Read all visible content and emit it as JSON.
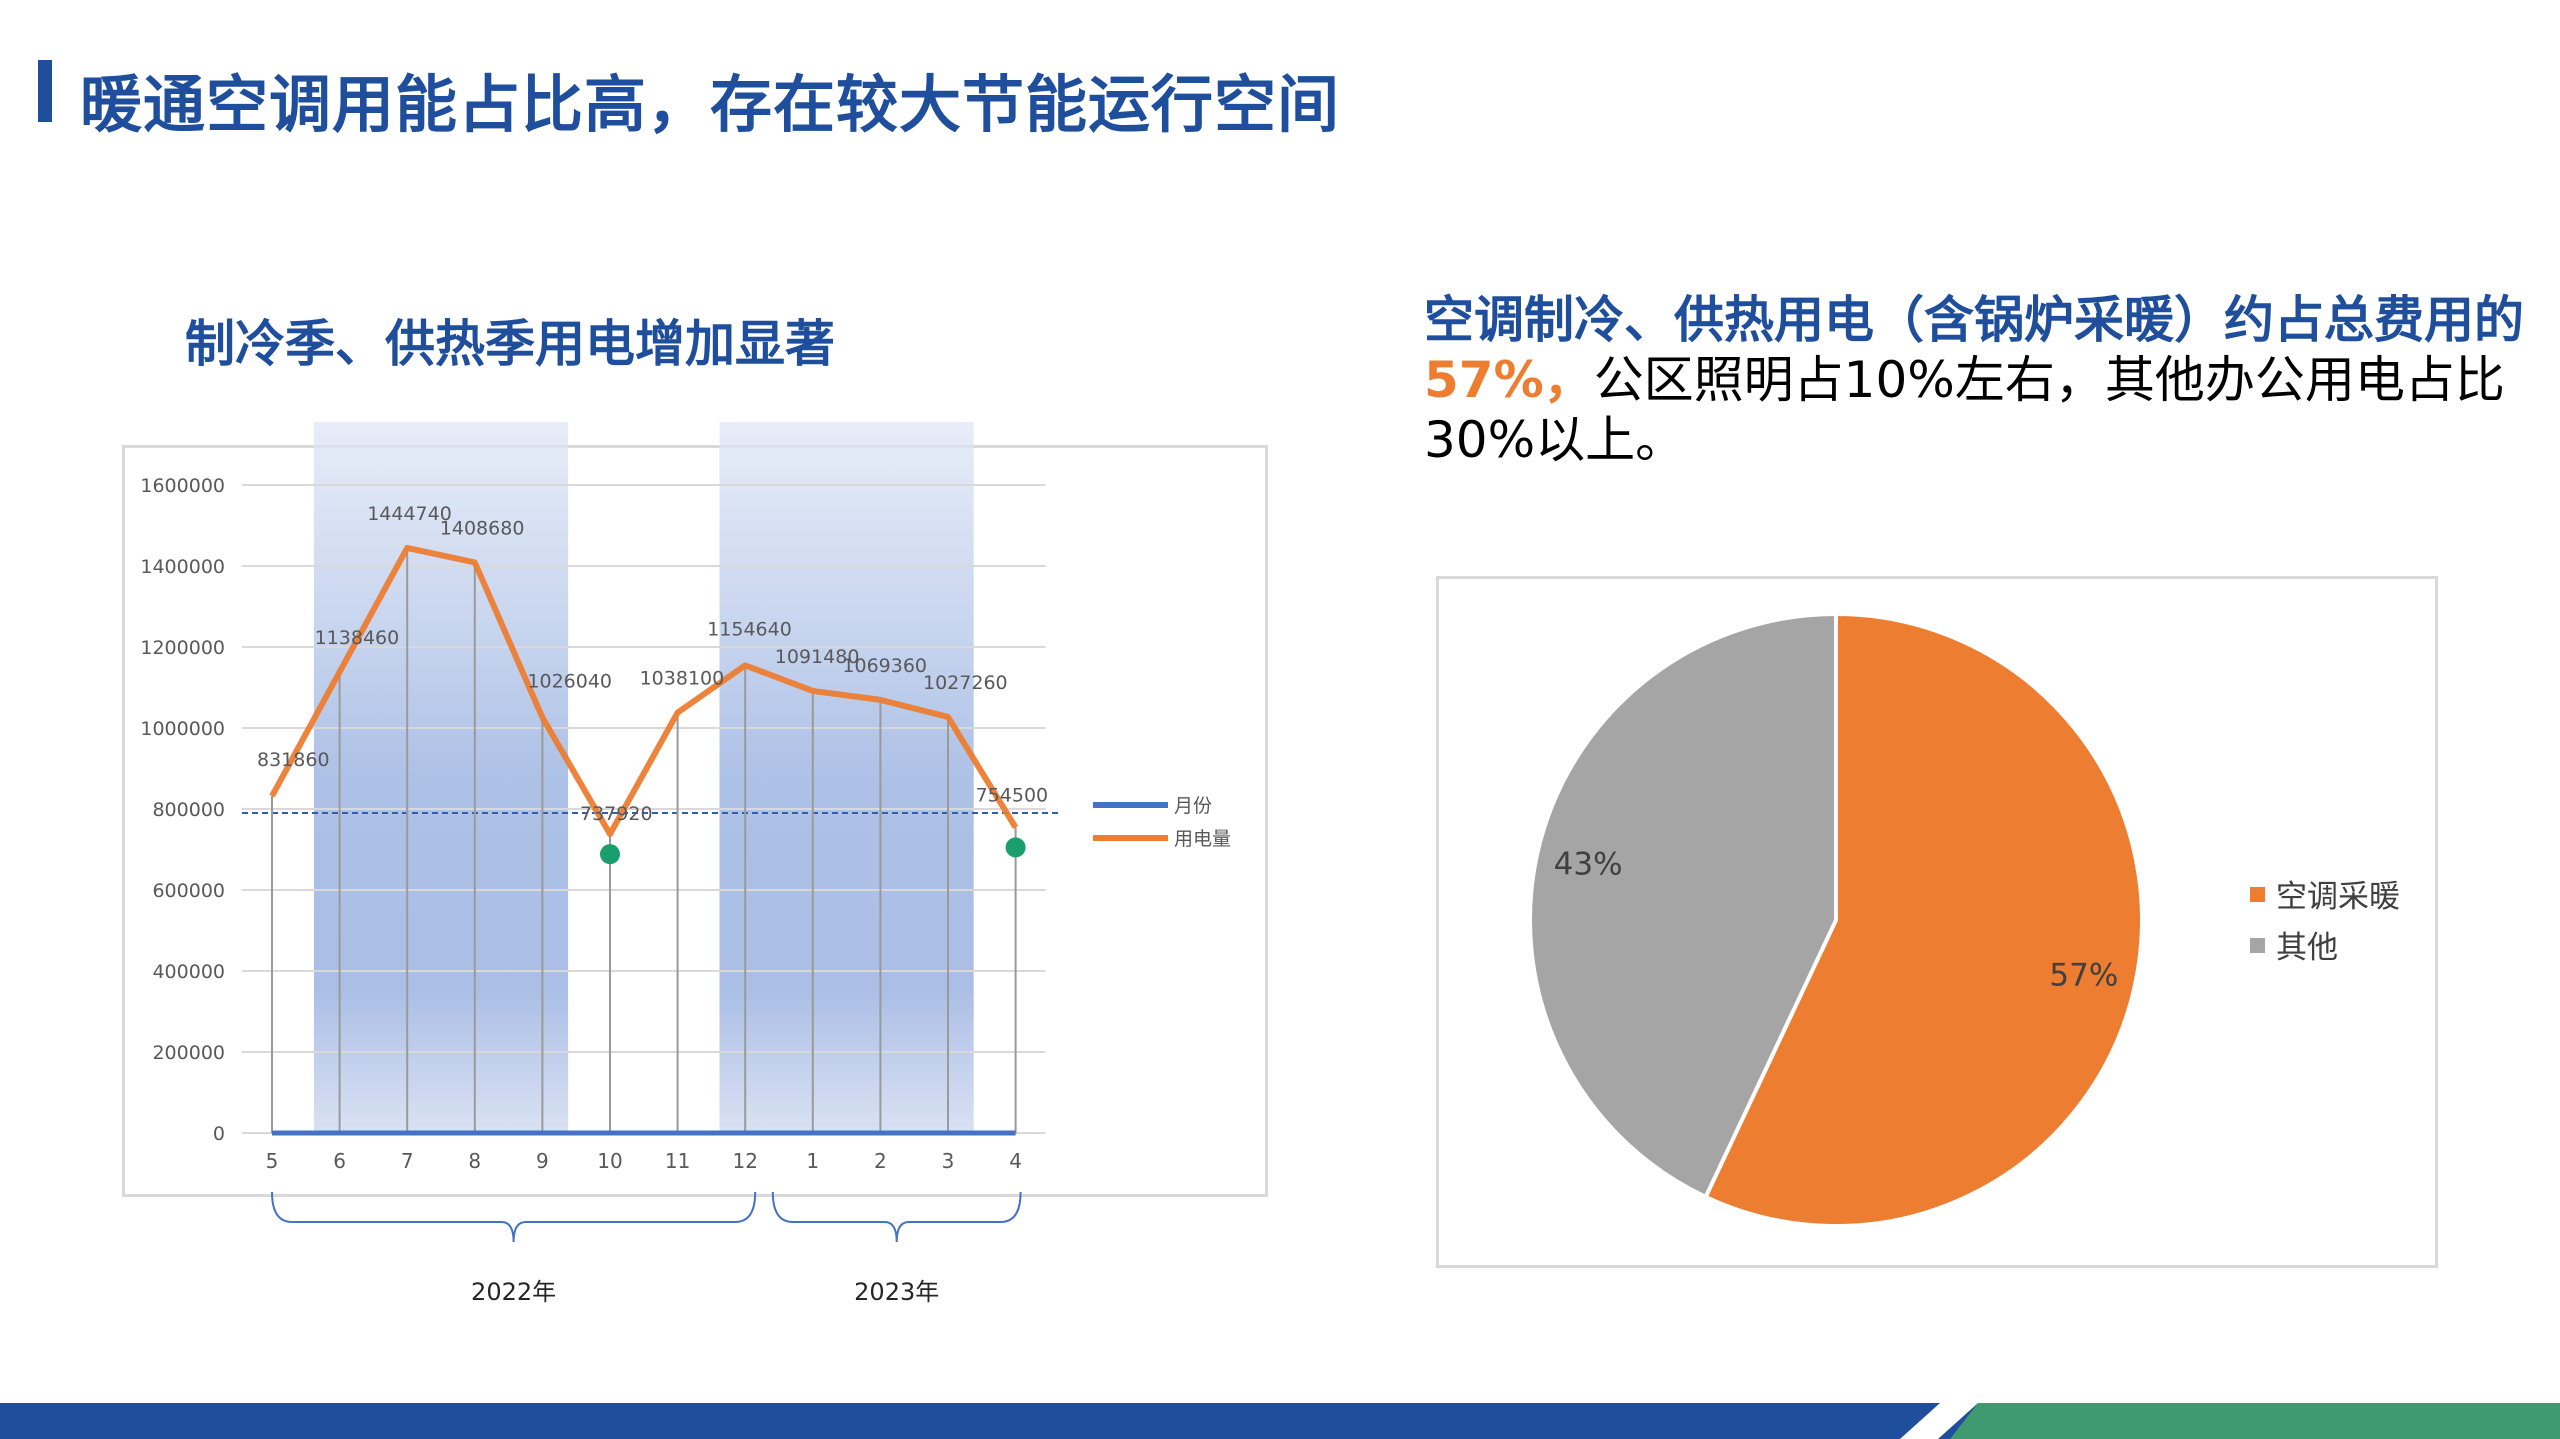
{
  "slide": {
    "title": "暖通空调用能占比高，存在较大节能运行空间"
  },
  "left_panel": {
    "heading": "制冷季、供热季用电增加显著",
    "year_labels": [
      "2022年",
      "2023年"
    ]
  },
  "right_panel": {
    "text_bold": "空调制冷、供热用电（含锅炉采暖）约占总费用的",
    "text_pct": "57%，",
    "text_rest": "公区照明占10%左右，其他办公用电占比30%以上。"
  },
  "colors": {
    "brand_blue": "#1f4e9c",
    "orange": "#ed7d31",
    "gray": "#a5a5a5",
    "green_dot": "#1a9e6e",
    "footer_green": "#3f9a72"
  },
  "chart_data": [
    {
      "type": "line",
      "x": [
        "5",
        "6",
        "7",
        "8",
        "9",
        "10",
        "11",
        "12",
        "1",
        "2",
        "3",
        "4"
      ],
      "series": [
        {
          "name": "月份",
          "values": [
            0,
            0,
            0,
            0,
            0,
            0,
            0,
            0,
            0,
            0,
            0,
            0
          ],
          "color": "#4472c4"
        },
        {
          "name": "用电量",
          "values": [
            831860,
            1138460,
            1444740,
            1408680,
            1026040,
            737920,
            1038100,
            1154640,
            1091480,
            1069360,
            1027260,
            754500
          ],
          "color": "#ed7d31"
        }
      ],
      "data_labels": [
        "831860",
        "1138460",
        "1444740",
        "1408680",
        "1026040",
        "737920",
        "1038100",
        "1154640",
        "1091480",
        "1069360",
        "1027260",
        "754500"
      ],
      "y_ticks": [
        "0",
        "200000",
        "400000",
        "600000",
        "800000",
        "1000000",
        "1200000",
        "1400000",
        "1600000"
      ],
      "ylim": [
        0,
        1600000
      ],
      "reference_line": 790000,
      "highlight_bands": [
        [
          "6",
          "9"
        ],
        [
          "12",
          "3"
        ]
      ],
      "highlight_points": [
        "10",
        "4"
      ],
      "legend": "right",
      "grid": true
    },
    {
      "type": "pie",
      "labels": [
        "空调采暖",
        "其他"
      ],
      "values": [
        57,
        43
      ],
      "value_labels": [
        "57%",
        "43%"
      ],
      "colors": [
        "#ed7d31",
        "#a5a5a5"
      ],
      "legend": "right"
    }
  ]
}
